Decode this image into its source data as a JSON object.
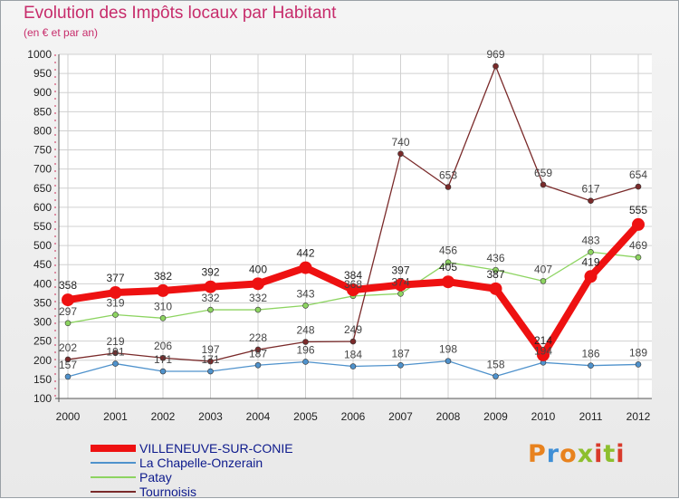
{
  "title": "Evolution des Impôts locaux par Habitant",
  "subtitle": "(en € et par an)",
  "brand": "Proxiti",
  "chart_data": {
    "type": "line",
    "categories": [
      "2000",
      "2001",
      "2002",
      "2003",
      "2004",
      "2005",
      "2006",
      "2007",
      "2008",
      "2009",
      "2010",
      "2011",
      "2012"
    ],
    "ylim": [
      100,
      1000
    ],
    "yticks": [
      100,
      150,
      200,
      250,
      300,
      350,
      400,
      450,
      500,
      550,
      600,
      650,
      700,
      750,
      800,
      850,
      900,
      950,
      1000
    ],
    "grid": true,
    "legend_position": "bottom-left",
    "series": [
      {
        "name": "VILLENEUVE-SUR-CONIE",
        "color": "#ee1111",
        "emphasis": true,
        "values": [
          358,
          377,
          382,
          392,
          400,
          442,
          384,
          397,
          405,
          387,
          214,
          419,
          555
        ],
        "labels": [
          "358",
          "377",
          "382",
          "392",
          "400",
          "442",
          "384",
          "397",
          "405",
          "387",
          "214",
          "419",
          "555"
        ]
      },
      {
        "name": "La Chapelle-Onzerain",
        "color": "#4f92cc",
        "emphasis": false,
        "values": [
          157,
          191,
          171,
          171,
          187,
          196,
          184,
          187,
          198,
          158,
          194,
          186,
          189
        ],
        "labels": [
          "157",
          "191",
          "171",
          "171",
          "187",
          "196",
          "184",
          "187",
          "198",
          "158",
          "194",
          "186",
          "189"
        ]
      },
      {
        "name": "Patay",
        "color": "#8dd461",
        "emphasis": false,
        "values": [
          297,
          319,
          310,
          332,
          332,
          343,
          368,
          374,
          456,
          436,
          407,
          483,
          469
        ],
        "labels": [
          "297",
          "319",
          "310",
          "332",
          "332",
          "343",
          "368",
          "374",
          "456",
          "436",
          "407",
          "483",
          "469"
        ]
      },
      {
        "name": "Tournoisis",
        "color": "#7a2a2a",
        "emphasis": false,
        "values": [
          202,
          219,
          206,
          197,
          228,
          248,
          249,
          740,
          653,
          969,
          659,
          617,
          654
        ],
        "labels": [
          "202",
          "219",
          "206",
          "197",
          "228",
          "248",
          "249",
          "740",
          "653",
          "969",
          "659",
          "617",
          "654"
        ]
      }
    ]
  }
}
